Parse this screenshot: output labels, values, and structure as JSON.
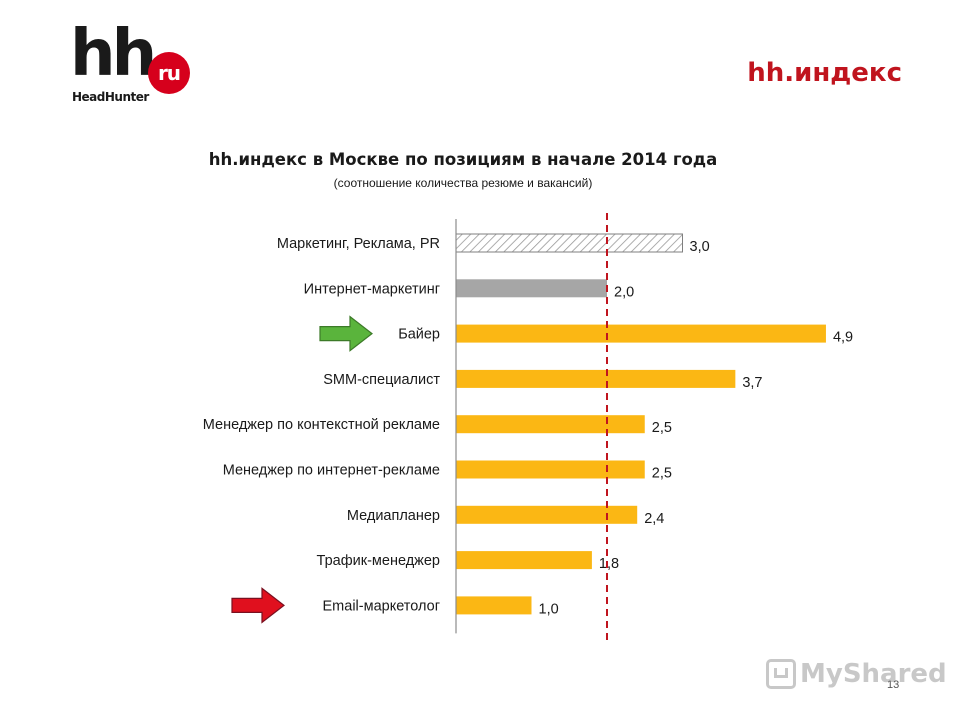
{
  "header": {
    "logo_main": "hh",
    "logo_badge": "ru",
    "logo_sub": "HeadHunter",
    "brand_title": "hh.индекс"
  },
  "chart_data": {
    "type": "bar",
    "orientation": "horizontal",
    "title": "hh.индекс в Москве по позициям в начале 2014 года",
    "subtitle": "(соотношение количества резюме и вакансий)",
    "categories": [
      "Маркетинг, Реклама, PR",
      "Интернет-маркетинг",
      "Байер",
      "SMM-специалист",
      "Менеджер по контекстной рекламе",
      "Менеджер по интернет-рекламе",
      "Медиапланер",
      "Трафик-менеджер",
      "Email-маркетолог"
    ],
    "values": [
      3.0,
      2.0,
      4.9,
      3.7,
      2.5,
      2.5,
      2.4,
      1.8,
      1.0
    ],
    "value_labels": [
      "3,0",
      "2,0",
      "4,9",
      "3,7",
      "2,5",
      "2,5",
      "2,4",
      "1,8",
      "1,0"
    ],
    "bar_styles": [
      "hatched",
      "gray",
      "yellow",
      "yellow",
      "yellow",
      "yellow",
      "yellow",
      "yellow",
      "yellow"
    ],
    "reference_line": 2.0,
    "xlim": [
      0,
      5
    ],
    "arrows": [
      {
        "category": "Байер",
        "color": "#5ab43c",
        "meaning": "highlight-high"
      },
      {
        "category": "Email-маркетолог",
        "color": "#e0101e",
        "meaning": "highlight-low"
      }
    ],
    "colors": {
      "yellow": "#fbb714",
      "gray": "#a6a6a6",
      "hatch": "#999999",
      "reference": "#c0141e",
      "axis": "#8c8c8c"
    }
  },
  "footer": {
    "watermark": "MyShared",
    "page_number": "13"
  }
}
